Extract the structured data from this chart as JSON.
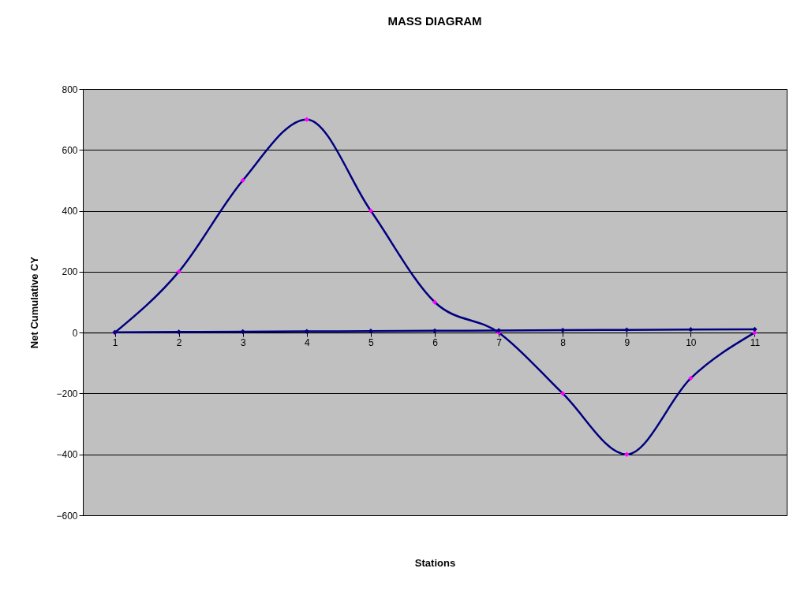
{
  "chart_data": {
    "type": "line",
    "title": "MASS DIAGRAM",
    "xlabel": "Stations",
    "ylabel": "Net Cumulative CY",
    "categories": [
      "1",
      "2",
      "3",
      "4",
      "5",
      "6",
      "7",
      "8",
      "9",
      "10",
      "11"
    ],
    "series": [
      {
        "color": "#000080",
        "colors": [
          "#ff00ff",
          "#ff00ff",
          "#ff00ff",
          "#ff00ff",
          "#ff00ff",
          "#ff00ff",
          "#ff00ff",
          "#ff00ff",
          "#ff00ff",
          "#ff00ff",
          "#ff00ff"
        ],
        "values": [
          0,
          200,
          500,
          700,
          400,
          100,
          0,
          -200,
          -400,
          -150,
          0
        ]
      },
      {
        "color": "#000080",
        "values": [
          1,
          2,
          3,
          4,
          5,
          6,
          7,
          8,
          9,
          10,
          11
        ]
      }
    ],
    "ylim": [
      -600,
      800
    ],
    "yticks": [
      -600,
      -400,
      -200,
      0,
      200,
      400,
      600,
      800
    ],
    "grid": "y",
    "marker": "diamond",
    "line_style": "solid"
  }
}
